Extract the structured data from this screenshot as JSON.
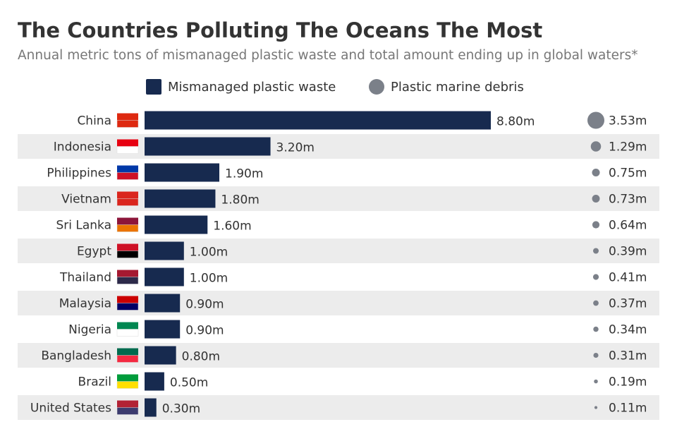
{
  "chart_data": {
    "type": "bar",
    "title": "The Countries Polluting The Oceans The Most",
    "subtitle": "Annual metric tons of mismanaged plastic waste and total amount ending up in global waters*",
    "categories": [
      "China",
      "Indonesia",
      "Philippines",
      "Vietnam",
      "Sri Lanka",
      "Egypt",
      "Thailand",
      "Malaysia",
      "Nigeria",
      "Bangladesh",
      "Brazil",
      "United States"
    ],
    "series": [
      {
        "name": "Mismanaged plastic waste",
        "color": "#172a4f",
        "marker": "square",
        "values": [
          8.8,
          3.2,
          1.9,
          1.8,
          1.6,
          1.0,
          1.0,
          0.9,
          0.9,
          0.8,
          0.5,
          0.3
        ],
        "value_labels": [
          "8.80m",
          "3.20m",
          "1.90m",
          "1.80m",
          "1.60m",
          "1.00m",
          "1.00m",
          "0.90m",
          "0.90m",
          "0.80m",
          "0.50m",
          "0.30m"
        ]
      },
      {
        "name": "Plastic marine debris",
        "color": "#7b8089",
        "marker": "circle",
        "values": [
          3.53,
          1.29,
          0.75,
          0.73,
          0.64,
          0.39,
          0.41,
          0.37,
          0.34,
          0.31,
          0.19,
          0.11
        ],
        "value_labels": [
          "3.53m",
          "1.29m",
          "0.75m",
          "0.73m",
          "0.64m",
          "0.39m",
          "0.41m",
          "0.37m",
          "0.34m",
          "0.31m",
          "0.19m",
          "0.11m"
        ]
      }
    ]
  }
}
